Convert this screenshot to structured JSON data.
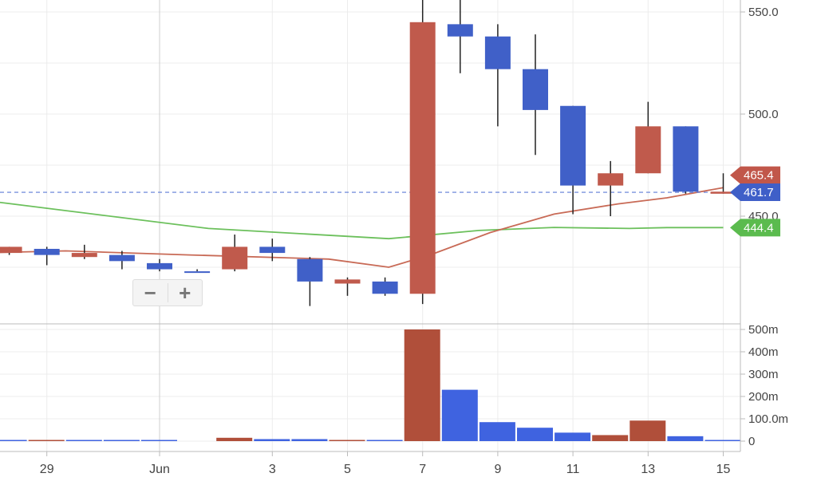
{
  "chart_data": {
    "type": "candlestick",
    "x_tick_labels": [
      "29",
      "Jun",
      "3",
      "5",
      "7",
      "9",
      "11",
      "13",
      "15"
    ],
    "price_axis": {
      "ticks": [
        "550.0",
        "500.0",
        "450.0"
      ],
      "range": [
        380,
        555
      ]
    },
    "volume_axis": {
      "ticks": [
        "500m",
        "400m",
        "300m",
        "200m",
        "100.0m",
        "0"
      ],
      "range": [
        0,
        500
      ]
    },
    "candles": [
      {
        "day": -4,
        "open": 435,
        "close": 432,
        "high": 435,
        "low": 431,
        "dir": "down"
      },
      {
        "day": -3,
        "open": 434,
        "close": 431,
        "high": 435,
        "low": 426,
        "dir": "up"
      },
      {
        "day": -2,
        "open": 430,
        "close": 432,
        "high": 436,
        "low": 429,
        "dir": "down"
      },
      {
        "day": -1,
        "open": 431,
        "close": 428,
        "high": 433,
        "low": 424,
        "dir": "up"
      },
      {
        "day": 0,
        "open": 427,
        "close": 424,
        "high": 429,
        "low": 423,
        "dir": "up"
      },
      {
        "day": 1,
        "open": 423,
        "close": 423,
        "high": 424,
        "low": 423,
        "dir": "up"
      },
      {
        "day": 2,
        "open": 424,
        "close": 435,
        "high": 441,
        "low": 423,
        "dir": "down"
      },
      {
        "day": 3,
        "open": 435,
        "close": 432,
        "high": 439,
        "low": 428,
        "dir": "up"
      },
      {
        "day": 4,
        "open": 429,
        "close": 418,
        "high": 430,
        "low": 406,
        "dir": "up"
      },
      {
        "day": 5,
        "open": 417,
        "close": 419,
        "high": 420,
        "low": 411,
        "dir": "down"
      },
      {
        "day": 6,
        "open": 418,
        "close": 412,
        "high": 420,
        "low": 411,
        "dir": "up"
      },
      {
        "day": 7,
        "open": 412,
        "close": 545,
        "high": 557,
        "low": 407,
        "dir": "down"
      },
      {
        "day": 8,
        "open": 544,
        "close": 538,
        "high": 557,
        "low": 520,
        "dir": "up"
      },
      {
        "day": 9,
        "open": 538,
        "close": 522,
        "high": 544,
        "low": 494,
        "dir": "up"
      },
      {
        "day": 10,
        "open": 522,
        "close": 502,
        "high": 539,
        "low": 480,
        "dir": "up"
      },
      {
        "day": 11,
        "open": 504,
        "close": 465,
        "high": 504,
        "low": 451,
        "dir": "up"
      },
      {
        "day": 12,
        "open": 465,
        "close": 471,
        "high": 477,
        "low": 450,
        "dir": "down"
      },
      {
        "day": 13,
        "open": 471,
        "close": 494,
        "high": 506,
        "low": 471,
        "dir": "down"
      },
      {
        "day": 14,
        "open": 494,
        "close": 462,
        "high": 494,
        "low": 461,
        "dir": "up"
      },
      {
        "day": 15,
        "open": 462,
        "close": 461,
        "high": 471,
        "low": 461,
        "dir": "down"
      }
    ],
    "volumes": [
      {
        "day": -4,
        "value": 1,
        "dir": "up"
      },
      {
        "day": -3,
        "value": 1,
        "dir": "down"
      },
      {
        "day": -2,
        "value": 1,
        "dir": "up"
      },
      {
        "day": -1,
        "value": 1,
        "dir": "up"
      },
      {
        "day": 0,
        "value": 1,
        "dir": "up"
      },
      {
        "day": 2,
        "value": 15,
        "dir": "down"
      },
      {
        "day": 3,
        "value": 9,
        "dir": "up"
      },
      {
        "day": 4,
        "value": 9,
        "dir": "up"
      },
      {
        "day": 5,
        "value": 3,
        "dir": "down"
      },
      {
        "day": 6,
        "value": 3,
        "dir": "up"
      },
      {
        "day": 7,
        "value": 500,
        "dir": "down"
      },
      {
        "day": 8,
        "value": 230,
        "dir": "up"
      },
      {
        "day": 9,
        "value": 85,
        "dir": "up"
      },
      {
        "day": 10,
        "value": 60,
        "dir": "up"
      },
      {
        "day": 11,
        "value": 38,
        "dir": "up"
      },
      {
        "day": 12,
        "value": 27,
        "dir": "down"
      },
      {
        "day": 13,
        "value": 92,
        "dir": "down"
      },
      {
        "day": 14,
        "value": 22,
        "dir": "up"
      },
      {
        "day": 15,
        "value": 4,
        "dir": "up"
      }
    ],
    "series": [
      {
        "color": "#6cc05c",
        "points": [
          [
            -4.8,
            458
          ],
          [
            1.3,
            444
          ],
          [
            6.1,
            439
          ],
          [
            8.5,
            443
          ],
          [
            10.5,
            444.5
          ],
          [
            12.5,
            444
          ],
          [
            13.5,
            444.4
          ],
          [
            15,
            444.4
          ]
        ]
      },
      {
        "color": "#c86a56",
        "points": [
          [
            -4.8,
            432
          ],
          [
            -2.5,
            433
          ],
          [
            0.8,
            431
          ],
          [
            4.5,
            429
          ],
          [
            6.1,
            425
          ],
          [
            7.2,
            431
          ],
          [
            8.8,
            442
          ],
          [
            10.5,
            451
          ],
          [
            12.2,
            456
          ],
          [
            13.5,
            459
          ],
          [
            15,
            464
          ]
        ]
      }
    ],
    "last_price": 461.7,
    "price_labels": [
      {
        "text": "465.4",
        "color": "#c1574a"
      },
      {
        "text": "461.7",
        "color": "#3f5fc8"
      },
      {
        "text": "444.4",
        "color": "#5bbb4e"
      }
    ],
    "colors": {
      "up": "#4060c8",
      "down": "#c05a4c",
      "volume_up": "#3f63e0",
      "volume_down": "#b04f3a"
    }
  },
  "controls": {
    "zoom_out": "−",
    "zoom_in": "+"
  }
}
